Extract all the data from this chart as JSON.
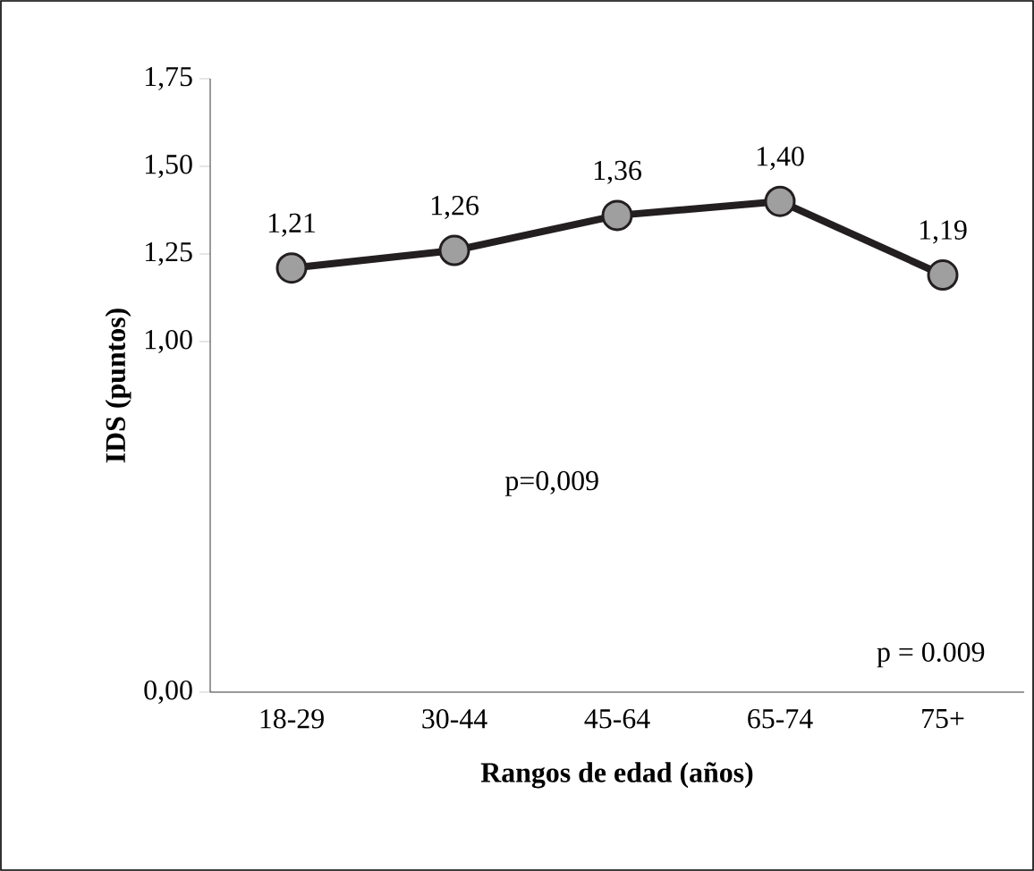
{
  "chart_data": {
    "type": "line",
    "xlabel": "Rangos de edad (años)",
    "ylabel": "IDS (puntos)",
    "categories": [
      "18-29",
      "30-44",
      "45-64",
      "65-74",
      "75+"
    ],
    "series": [
      {
        "color": "#231f20",
        "values": [
          1.21,
          1.26,
          1.36,
          1.4,
          1.19
        ],
        "value_labels": [
          "1,21",
          "1,26",
          "1,36",
          "1,40",
          "1,19"
        ]
      }
    ],
    "ylim": [
      0,
      1.75
    ],
    "yticks": [
      {
        "value": 0,
        "label": "0,00"
      },
      {
        "value": 1.0,
        "label": "1,00"
      },
      {
        "value": 1.25,
        "label": "1,25"
      },
      {
        "value": 1.5,
        "label": "1,50"
      },
      {
        "value": 1.75,
        "label": "1,75"
      }
    ],
    "marker": "circle",
    "line_style": "solid",
    "grid": false,
    "annotations": [
      "p=0,009",
      "p = 0.009"
    ]
  }
}
